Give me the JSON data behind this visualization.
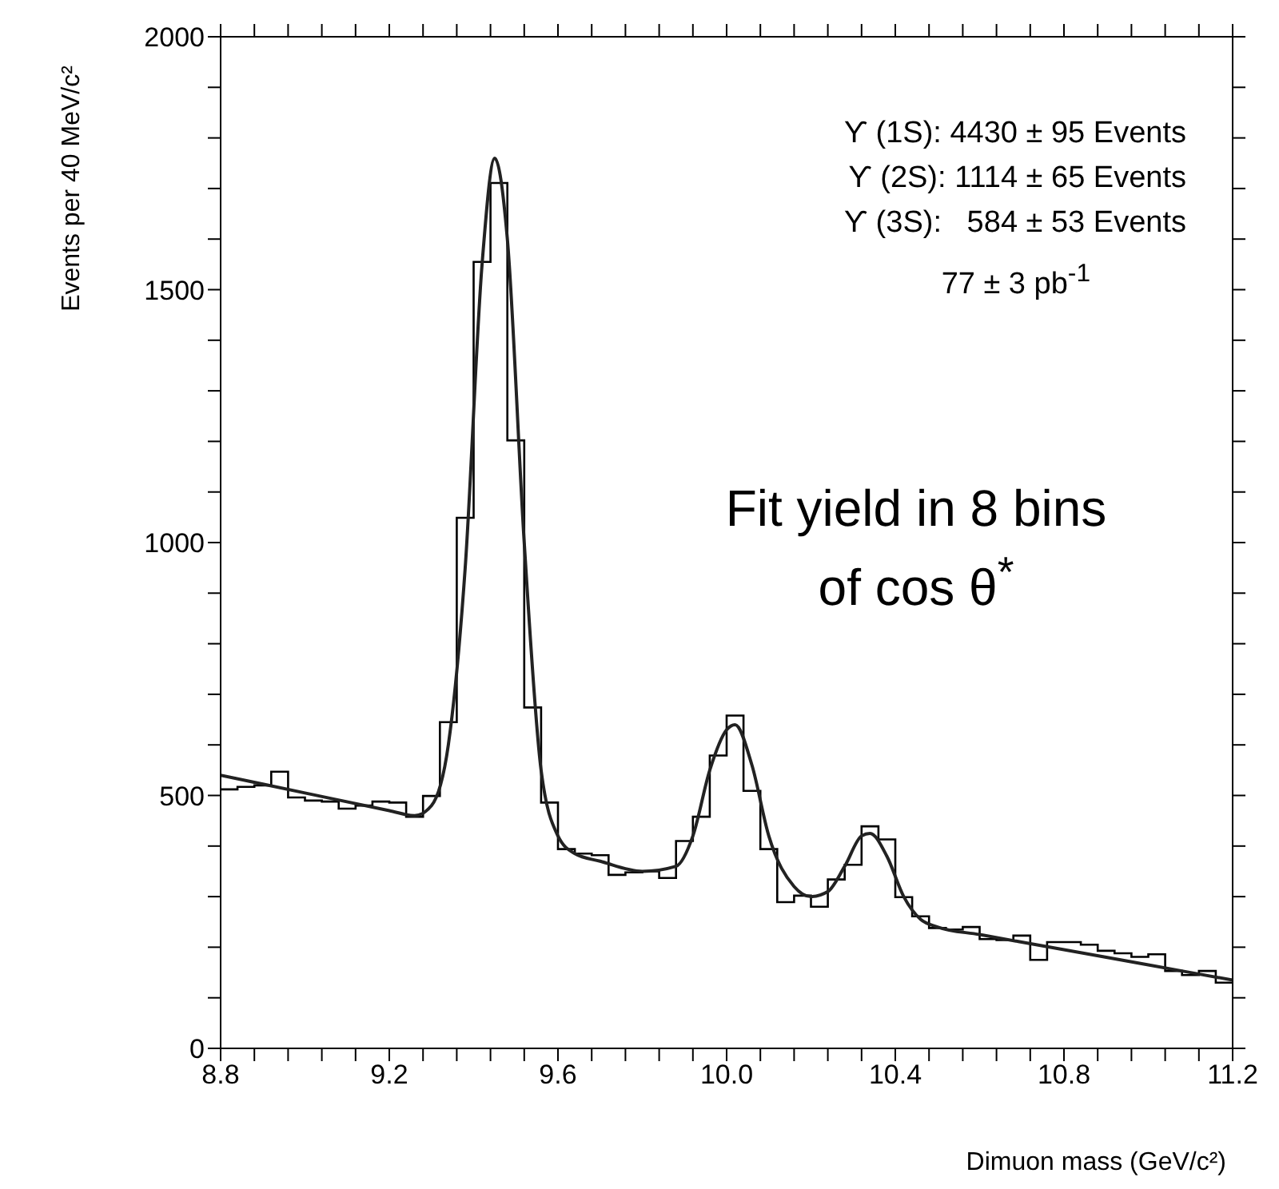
{
  "chart_data": {
    "type": "histogram",
    "xlabel": "Dimuon mass (GeV/c²)",
    "ylabel": "Events per 40 MeV/c²",
    "bins": [
      8.8,
      8.84,
      8.88,
      8.92,
      8.96,
      9.0,
      9.04,
      9.08,
      9.12,
      9.16,
      9.2,
      9.24,
      9.28,
      9.32,
      9.36,
      9.4,
      9.44,
      9.48,
      9.52,
      9.56,
      9.6,
      9.64,
      9.68,
      9.72,
      9.76,
      9.8,
      9.84,
      9.88,
      9.92,
      9.96,
      10.0,
      10.04,
      10.08,
      10.12,
      10.16,
      10.2,
      10.24,
      10.28,
      10.32,
      10.36,
      10.4,
      10.44,
      10.48,
      10.52,
      10.56,
      10.6,
      10.64,
      10.68,
      10.72,
      10.76,
      10.8,
      10.84,
      10.88,
      10.92,
      10.96,
      11.0,
      11.04,
      11.08,
      11.12,
      11.16,
      11.2
    ],
    "values": [
      512,
      517,
      520,
      547,
      496,
      490,
      488,
      474,
      480,
      488,
      486,
      458,
      499,
      645,
      1049,
      1555,
      1711,
      1202,
      674,
      486,
      394,
      385,
      382,
      343,
      348,
      350,
      337,
      410,
      458,
      579,
      658,
      509,
      394,
      289,
      302,
      280,
      334,
      363,
      439,
      413,
      299,
      261,
      238,
      235,
      240,
      216,
      214,
      223,
      175,
      210,
      210,
      205,
      193,
      188,
      181,
      186,
      153,
      145,
      153,
      130
    ],
    "color": "#000000",
    "series": [
      {
        "type": "line",
        "color": "#222222",
        "x": [
          8.8,
          9.0,
          9.2,
          9.26,
          9.3,
          9.34,
          9.38,
          9.42,
          9.45,
          9.48,
          9.52,
          9.56,
          9.6,
          9.64,
          9.7,
          9.8,
          9.88,
          9.92,
          9.96,
          10.0,
          10.02,
          10.06,
          10.1,
          10.16,
          10.2,
          10.24,
          10.28,
          10.32,
          10.34,
          10.38,
          10.42,
          10.46,
          10.5,
          10.6,
          10.8,
          11.0,
          11.2
        ],
        "values": [
          540,
          505,
          470,
          460,
          480,
          600,
          950,
          1550,
          1760,
          1600,
          1000,
          550,
          420,
          385,
          370,
          350,
          360,
          420,
          550,
          630,
          640,
          560,
          420,
          320,
          300,
          310,
          360,
          420,
          425,
          380,
          300,
          255,
          240,
          225,
          195,
          165,
          135
        ]
      }
    ],
    "xlim": [
      8.8,
      11.2
    ],
    "xticks": [
      8.8,
      {
        "value": 8.88,
        "label": null
      },
      {
        "value": 8.96,
        "label": null
      },
      {
        "value": 9.04,
        "label": null
      },
      {
        "value": 9.12,
        "label": null
      },
      9.2,
      {
        "value": 9.28,
        "label": null
      },
      {
        "value": 9.36,
        "label": null
      },
      {
        "value": 9.44,
        "label": null
      },
      {
        "value": 9.52,
        "label": null
      },
      9.6,
      {
        "value": 9.68,
        "label": null
      },
      {
        "value": 9.76,
        "label": null
      },
      {
        "value": 9.84,
        "label": null
      },
      {
        "value": 9.92,
        "label": null
      },
      {
        "value": 10.0,
        "label": "10.0"
      },
      {
        "value": 10.08,
        "label": null
      },
      {
        "value": 10.16,
        "label": null
      },
      {
        "value": 10.24,
        "label": null
      },
      {
        "value": 10.32,
        "label": null
      },
      10.4,
      {
        "value": 10.48,
        "label": null
      },
      {
        "value": 10.56,
        "label": null
      },
      {
        "value": 10.64,
        "label": null
      },
      {
        "value": 10.72,
        "label": null
      },
      10.8,
      {
        "value": 10.88,
        "label": null
      },
      {
        "value": 10.96,
        "label": null
      },
      {
        "value": 11.04,
        "label": null
      },
      {
        "value": 11.12,
        "label": null
      },
      11.2
    ],
    "ylim": [
      0,
      2000
    ],
    "yticks": [
      0,
      {
        "value": 100,
        "label": null
      },
      {
        "value": 200,
        "label": null
      },
      {
        "value": 300,
        "label": null
      },
      {
        "value": 400,
        "label": null
      },
      500,
      {
        "value": 600,
        "label": null
      },
      {
        "value": 700,
        "label": null
      },
      {
        "value": 800,
        "label": null
      },
      {
        "value": 900,
        "label": null
      },
      1000,
      {
        "value": 1100,
        "label": null
      },
      {
        "value": 1200,
        "label": null
      },
      {
        "value": 1300,
        "label": null
      },
      {
        "value": 1400,
        "label": null
      },
      1500,
      {
        "value": 1600,
        "label": null
      },
      {
        "value": 1700,
        "label": null
      },
      {
        "value": 1800,
        "label": null
      },
      {
        "value": 1900,
        "label": null
      },
      2000
    ],
    "annotations": [
      "ϒ (1S): 4430 ± 95 Events",
      "ϒ (2S): 1114 ± 65 Events",
      "ϒ (3S):   584 ± 53 Events",
      "77 ± 3 pb$^{-1}$",
      "Fit yield in 8 bins of cos θ$^{*}$"
    ]
  }
}
